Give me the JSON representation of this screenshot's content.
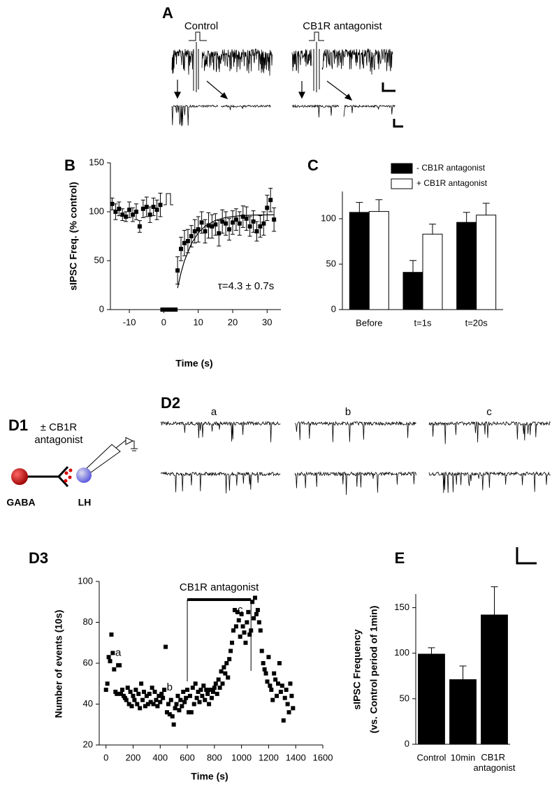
{
  "panels": {
    "A": {
      "label": "A",
      "left": "Control",
      "right": "CB1R antagonist"
    },
    "D1": {
      "label": "D1",
      "drug": [
        "± CB1R",
        "antagonist"
      ],
      "pre": "GABA",
      "post": "LH"
    },
    "D2": {
      "label": "D2",
      "columns": [
        "a",
        "b",
        "c"
      ]
    }
  },
  "chart_data": [
    {
      "panel": "B",
      "type": "scatter",
      "xlabel": "Time (s)",
      "ylabel": "sIPSC Freq. (% control)",
      "annotation": "τ=4.3 ± 0.7s",
      "xlim": [
        -15.5,
        34
      ],
      "ylim": [
        0,
        150
      ],
      "xticks": [
        -10,
        0,
        10,
        20,
        30
      ],
      "yticks": [
        0,
        50,
        100,
        150
      ],
      "series": [
        {
          "color": "#000000",
          "x": [
            -15,
            -14,
            -13,
            -12,
            -11,
            -10,
            -9,
            -8,
            -7,
            -6,
            -5,
            -4,
            -3,
            -2,
            -1,
            4,
            5,
            6,
            7,
            8,
            9,
            10,
            11,
            12,
            13,
            14,
            15,
            16,
            17,
            18,
            19,
            20,
            21,
            22,
            23,
            24,
            25,
            26,
            27,
            28,
            29,
            30,
            31,
            32
          ],
          "values": [
            108,
            100,
            103,
            97,
            95,
            102,
            97,
            100,
            85,
            103,
            105,
            97,
            105,
            102,
            107,
            40,
            62,
            68,
            70,
            75,
            80,
            82,
            89,
            80,
            86,
            85,
            87,
            78,
            90,
            88,
            82,
            89,
            92,
            88,
            95,
            93,
            85,
            90,
            80,
            85,
            88,
            104,
            112,
            92
          ],
          "errors": [
            6,
            8,
            7,
            6,
            5,
            8,
            7,
            8,
            6,
            9,
            10,
            8,
            9,
            10,
            12,
            14,
            12,
            13,
            12,
            11,
            12,
            13,
            11,
            12,
            13,
            12,
            11,
            13,
            12,
            12,
            11,
            12,
            11,
            12,
            11,
            12,
            10,
            11,
            10,
            11,
            12,
            13,
            12,
            12
          ]
        }
      ],
      "fit": {
        "x": [
          4,
          5,
          6,
          8,
          10,
          12,
          15,
          18,
          22,
          26,
          32
        ],
        "values": [
          22,
          37.6,
          49.9,
          67.4,
          78.4,
          85.3,
          91.2,
          94.1,
          95.9,
          96.6,
          96.9
        ]
      },
      "stimulus_x": [
        -1,
        4
      ]
    },
    {
      "panel": "C",
      "type": "bar",
      "categories": [
        "Before",
        "t=1s",
        "t=20s"
      ],
      "ylim": [
        0,
        130
      ],
      "yticks": [
        0,
        50,
        100
      ],
      "legend": "top-right",
      "series": [
        {
          "name": "- CB1R antagonist",
          "color": "#000000",
          "values": [
            107,
            41,
            96
          ],
          "errors": [
            11,
            13,
            11
          ]
        },
        {
          "name": "+ CB1R antagonist",
          "color": "#ffffff",
          "values": [
            108,
            83,
            104
          ],
          "errors": [
            13,
            11,
            13
          ]
        }
      ]
    },
    {
      "panel": "D3",
      "type": "scatter",
      "xlabel": "Time (s)",
      "ylabel": "Number of events (10s)",
      "xlim": [
        -50,
        1600
      ],
      "ylim": [
        20,
        100
      ],
      "xticks": [
        0,
        200,
        400,
        600,
        800,
        1000,
        1200,
        1400,
        1600
      ],
      "yticks": [
        20,
        40,
        60,
        80,
        100
      ],
      "treatment": {
        "label": "CB1R antagonist",
        "x": [
          600,
          1070
        ]
      },
      "annotations": [
        {
          "text": "a",
          "x": 90,
          "y": 65
        },
        {
          "text": "b",
          "x": 470,
          "y": 48
        },
        {
          "text": "c",
          "x": 990,
          "y": 86
        }
      ],
      "series": [
        {
          "color": "#000000",
          "x": [
            0,
            10,
            20,
            30,
            40,
            50,
            60,
            70,
            80,
            90,
            100,
            110,
            120,
            130,
            140,
            150,
            160,
            170,
            180,
            190,
            200,
            210,
            220,
            230,
            240,
            250,
            260,
            270,
            280,
            290,
            300,
            310,
            320,
            330,
            340,
            350,
            360,
            370,
            380,
            390,
            400,
            410,
            420,
            430,
            440,
            450,
            460,
            470,
            480,
            490,
            500,
            510,
            520,
            530,
            540,
            550,
            560,
            570,
            580,
            590,
            600,
            610,
            620,
            630,
            640,
            650,
            660,
            670,
            680,
            690,
            700,
            710,
            720,
            730,
            740,
            750,
            760,
            770,
            780,
            790,
            800,
            810,
            820,
            830,
            840,
            850,
            860,
            870,
            880,
            890,
            900,
            910,
            920,
            930,
            940,
            950,
            960,
            970,
            980,
            990,
            1000,
            1010,
            1020,
            1030,
            1040,
            1050,
            1060,
            1070,
            1080,
            1090,
            1100,
            1110,
            1120,
            1130,
            1140,
            1150,
            1160,
            1170,
            1180,
            1190,
            1200,
            1210,
            1220,
            1230,
            1240,
            1250,
            1260,
            1270,
            1280,
            1290,
            1300,
            1310,
            1320,
            1330,
            1340,
            1350,
            1360,
            1370,
            1380
          ],
          "values": [
            47,
            50,
            63,
            61,
            74,
            65,
            57,
            46,
            45,
            59,
            59,
            45,
            47,
            44,
            43,
            42,
            48,
            40,
            46,
            39,
            44,
            42,
            47,
            40,
            45,
            38,
            50,
            42,
            46,
            39,
            44,
            40,
            45,
            41,
            48,
            40,
            46,
            42,
            39,
            44,
            41,
            45,
            43,
            47,
            68,
            36,
            40,
            35,
            42,
            34,
            30,
            38,
            40,
            44,
            37,
            42,
            39,
            46,
            41,
            43,
            47,
            36,
            44,
            36,
            48,
            40,
            50,
            43,
            46,
            41,
            47,
            44,
            49,
            42,
            47,
            45,
            40,
            47,
            43,
            46,
            48,
            50,
            45,
            52,
            48,
            56,
            50,
            58,
            55,
            60,
            53,
            62,
            66,
            70,
            76,
            86,
            78,
            85,
            81,
            73,
            84,
            78,
            75,
            70,
            80,
            85,
            74,
            76,
            90,
            82,
            92,
            84,
            86,
            80,
            76,
            66,
            60,
            57,
            55,
            51,
            63,
            49,
            47,
            42,
            55,
            52,
            44,
            50,
            60,
            46,
            49,
            32,
            43,
            47,
            40,
            36,
            50,
            44,
            38
          ]
        }
      ]
    },
    {
      "panel": "E",
      "type": "bar",
      "ylabel": [
        "sIPSC Frequency",
        "(vs. Control period of 1min)"
      ],
      "categories": [
        "Control",
        "10min",
        "CB1R antagonist"
      ],
      "ylim": [
        0,
        165
      ],
      "yticks": [
        0,
        50,
        100,
        150
      ],
      "values": [
        99,
        71,
        142
      ],
      "errors": [
        7,
        15,
        31
      ],
      "color": "#000000"
    }
  ]
}
